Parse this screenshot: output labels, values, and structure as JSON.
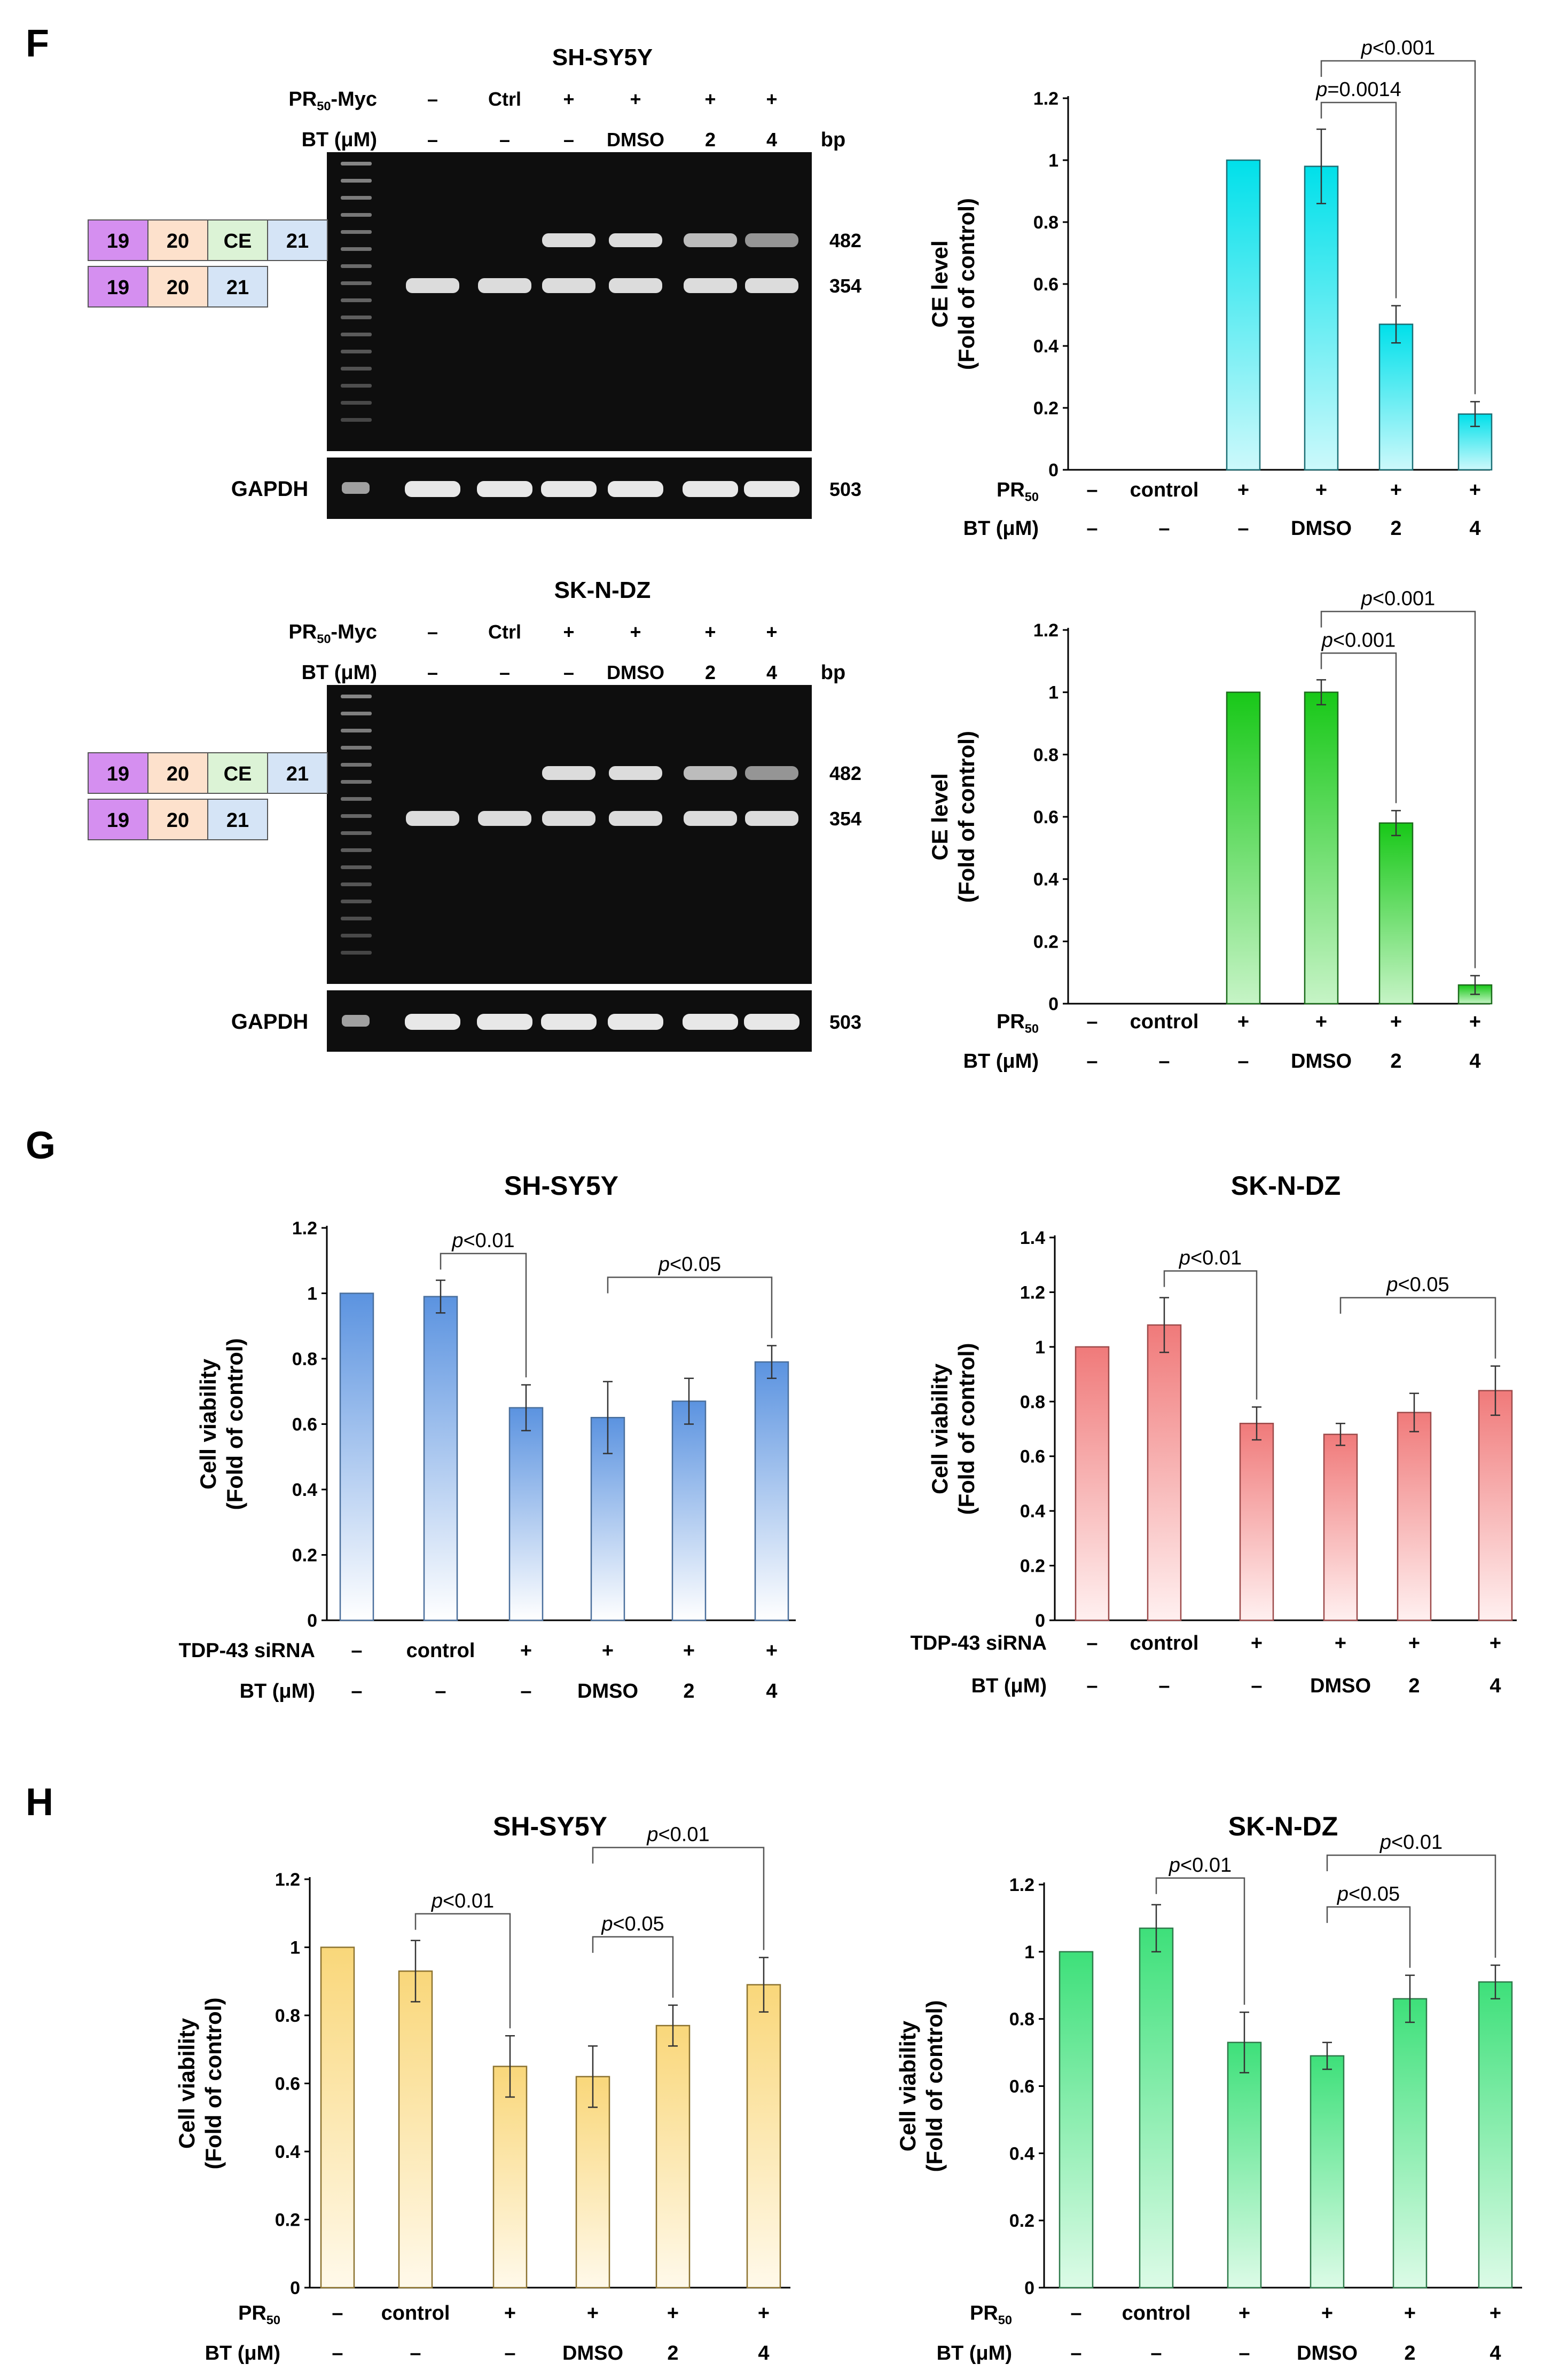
{
  "panels": {
    "F": {
      "letter": "F",
      "blots": [
        {
          "cell_line": "SH-SY5Y",
          "row_labels": [
            "PR50-Myc",
            "BT (μM)"
          ],
          "pr_row": [
            "–",
            "Ctrl",
            "+",
            "+",
            "+",
            "+"
          ],
          "bt_row": [
            "–",
            "–",
            "–",
            "DMSO",
            "2",
            "4"
          ],
          "bp_label": "bp",
          "sizes": [
            "482",
            "354"
          ],
          "gapdh_label": "GAPDH",
          "gapdh_size": "503",
          "exon_long": [
            "19",
            "20",
            "CE",
            "21"
          ],
          "exon_short": [
            "19",
            "20",
            "21"
          ],
          "upper_band_intensity": [
            0,
            0,
            1,
            1,
            0.75,
            0.45
          ]
        },
        {
          "cell_line": "SK-N-DZ",
          "row_labels": [
            "PR50-Myc",
            "BT (μM)"
          ],
          "pr_row": [
            "–",
            "Ctrl",
            "+",
            "+",
            "+",
            "+"
          ],
          "bt_row": [
            "–",
            "–",
            "–",
            "DMSO",
            "2",
            "4"
          ],
          "bp_label": "bp",
          "sizes": [
            "482",
            "354"
          ],
          "gapdh_label": "GAPDH",
          "gapdh_size": "503",
          "exon_long": [
            "19",
            "20",
            "CE",
            "21"
          ],
          "exon_short": [
            "19",
            "20",
            "21"
          ],
          "upper_band_intensity": [
            0,
            0,
            1,
            1,
            0.75,
            0.45
          ]
        }
      ]
    },
    "G": {
      "letter": "G"
    },
    "H": {
      "letter": "H"
    }
  },
  "chart_data": [
    {
      "id": "F-top",
      "type": "bar",
      "panel": "F",
      "title": "",
      "ylabel": "CE level\n(Fold of control)",
      "ylim": [
        0,
        1.2
      ],
      "yticks": [
        "0",
        "0.2",
        "0.4",
        "0.6",
        "0.8",
        "1",
        "1.2"
      ],
      "values": [
        0,
        0,
        1,
        0.98,
        0.47,
        0.18
      ],
      "errors": [
        0,
        0,
        0,
        0.12,
        0.06,
        0.04
      ],
      "row_labels": [
        "PR50",
        "BT (μM)"
      ],
      "pr_row": [
        "–",
        "control",
        "+",
        "+",
        "+",
        "+"
      ],
      "bt_row": [
        "–",
        "–",
        "–",
        "DMSO",
        "2",
        "4"
      ],
      "color": "#00e0ea",
      "color_light": "#ccf9fb",
      "stroke": "#1c6e74",
      "brackets": [
        {
          "from": 3,
          "to": 4,
          "label_p": "p",
          "label_rest": "=0.0014"
        },
        {
          "from": 3,
          "to": 5,
          "label_p": "p",
          "label_rest": "<0.001"
        }
      ]
    },
    {
      "id": "F-bottom",
      "type": "bar",
      "panel": "F",
      "title": "",
      "ylabel": "CE level\n(Fold of control)",
      "ylim": [
        0,
        1.2
      ],
      "yticks": [
        "0",
        "0.2",
        "0.4",
        "0.6",
        "0.8",
        "1",
        "1.2"
      ],
      "values": [
        0,
        0,
        1,
        1.0,
        0.58,
        0.06
      ],
      "errors": [
        0,
        0,
        0,
        0.04,
        0.04,
        0.03
      ],
      "row_labels": [
        "PR50",
        "BT (μM)"
      ],
      "pr_row": [
        "–",
        "control",
        "+",
        "+",
        "+",
        "+"
      ],
      "bt_row": [
        "–",
        "–",
        "–",
        "DMSO",
        "2",
        "4"
      ],
      "color": "#18c818",
      "color_light": "#c6f4c6",
      "stroke": "#1b6b1b",
      "brackets": [
        {
          "from": 3,
          "to": 4,
          "label_p": "p",
          "label_rest": "<0.001"
        },
        {
          "from": 3,
          "to": 5,
          "label_p": "p",
          "label_rest": "<0.001"
        }
      ]
    },
    {
      "id": "G-left",
      "type": "bar",
      "panel": "G",
      "title": "SH-SY5Y",
      "ylabel": "Cell viability\n(Fold of control)",
      "ylim": [
        0,
        1.2
      ],
      "yticks": [
        "0",
        "0.2",
        "0.4",
        "0.6",
        "0.8",
        "1",
        "1.2"
      ],
      "values": [
        1.0,
        0.99,
        0.65,
        0.62,
        0.67,
        0.79
      ],
      "errors": [
        0,
        0.05,
        0.07,
        0.11,
        0.07,
        0.05
      ],
      "row_labels": [
        "TDP-43 siRNA",
        "BT (μM)"
      ],
      "pr_row": [
        "–",
        "control",
        "+",
        "+",
        "+",
        "+"
      ],
      "bt_row": [
        "–",
        "–",
        "–",
        "DMSO",
        "2",
        "4"
      ],
      "color": "#5b93e0",
      "color_light": "#ffffff",
      "stroke": "#4a6f9c",
      "brackets": [
        {
          "from": 1,
          "to": 2,
          "label_p": "p",
          "label_rest": "<0.01"
        },
        {
          "from": 3,
          "to": 5,
          "label_p": "p",
          "label_rest": "<0.05"
        }
      ]
    },
    {
      "id": "G-right",
      "type": "bar",
      "panel": "G",
      "title": "SK-N-DZ",
      "ylabel": "Cell viability\n(Fold of control)",
      "ylim": [
        0,
        1.4
      ],
      "yticks": [
        "0",
        "0.2",
        "0.4",
        "0.6",
        "0.8",
        "1",
        "1.2",
        "1.4"
      ],
      "values": [
        1.0,
        1.08,
        0.72,
        0.68,
        0.76,
        0.84
      ],
      "errors": [
        0,
        0.1,
        0.06,
        0.04,
        0.07,
        0.09
      ],
      "row_labels": [
        "TDP-43 siRNA",
        "BT (μM)"
      ],
      "pr_row": [
        "–",
        "control",
        "+",
        "+",
        "+",
        "+"
      ],
      "bt_row": [
        "–",
        "–",
        "–",
        "DMSO",
        "2",
        "4"
      ],
      "color": "#f07a7a",
      "color_light": "#fff0f0",
      "stroke": "#9c4a4a",
      "brackets": [
        {
          "from": 1,
          "to": 2,
          "label_p": "p",
          "label_rest": "<0.01"
        },
        {
          "from": 3,
          "to": 5,
          "label_p": "p",
          "label_rest": "<0.05"
        }
      ]
    },
    {
      "id": "H-left",
      "type": "bar",
      "panel": "H",
      "title": "SH-SY5Y",
      "ylabel": "Cell viability\n(Fold of control)",
      "ylim": [
        0,
        1.2
      ],
      "yticks": [
        "0",
        "0.2",
        "0.4",
        "0.6",
        "0.8",
        "1",
        "1.2"
      ],
      "values": [
        1.0,
        0.93,
        0.65,
        0.62,
        0.77,
        0.89
      ],
      "errors": [
        0,
        0.09,
        0.09,
        0.09,
        0.06,
        0.08
      ],
      "row_labels": [
        "PR50",
        "BT (μM)"
      ],
      "pr_row": [
        "–",
        "control",
        "+",
        "+",
        "+",
        "+"
      ],
      "bt_row": [
        "–",
        "–",
        "–",
        "DMSO",
        "2",
        "4"
      ],
      "color": "#f9d77a",
      "color_light": "#fff9ea",
      "stroke": "#8c7330",
      "brackets": [
        {
          "from": 1,
          "to": 2,
          "label_p": "p",
          "label_rest": "<0.01"
        },
        {
          "from": 3,
          "to": 4,
          "label_p": "p",
          "label_rest": "<0.05"
        },
        {
          "from": 3,
          "to": 5,
          "label_p": "p",
          "label_rest": "<0.01"
        }
      ]
    },
    {
      "id": "H-right",
      "type": "bar",
      "panel": "H",
      "title": "SK-N-DZ",
      "ylabel": "Cell viability\n(Fold of control)",
      "ylim": [
        0,
        1.2
      ],
      "yticks": [
        "0",
        "0.2",
        "0.4",
        "0.6",
        "0.8",
        "1",
        "1.2"
      ],
      "values": [
        1.0,
        1.07,
        0.73,
        0.69,
        0.86,
        0.91
      ],
      "errors": [
        0,
        0.07,
        0.09,
        0.04,
        0.07,
        0.05
      ],
      "row_labels": [
        "PR50",
        "BT (μM)"
      ],
      "pr_row": [
        "–",
        "control",
        "+",
        "+",
        "+",
        "+"
      ],
      "bt_row": [
        "–",
        "–",
        "–",
        "DMSO",
        "2",
        "4"
      ],
      "color": "#3ee07a",
      "color_light": "#dcfbe7",
      "stroke": "#2e7a4a",
      "brackets": [
        {
          "from": 1,
          "to": 2,
          "label_p": "p",
          "label_rest": "<0.01"
        },
        {
          "from": 3,
          "to": 4,
          "label_p": "p",
          "label_rest": "<0.05"
        },
        {
          "from": 3,
          "to": 5,
          "label_p": "p",
          "label_rest": "<0.01"
        }
      ]
    }
  ],
  "colors": {
    "gel_background": "#0e0e0e",
    "band": "#e8e8e8",
    "exon_19": "#d58ff0",
    "exon_20": "#fde1cc",
    "exon_ce": "#dcf3d6",
    "exon_21": "#d5e4f6"
  }
}
